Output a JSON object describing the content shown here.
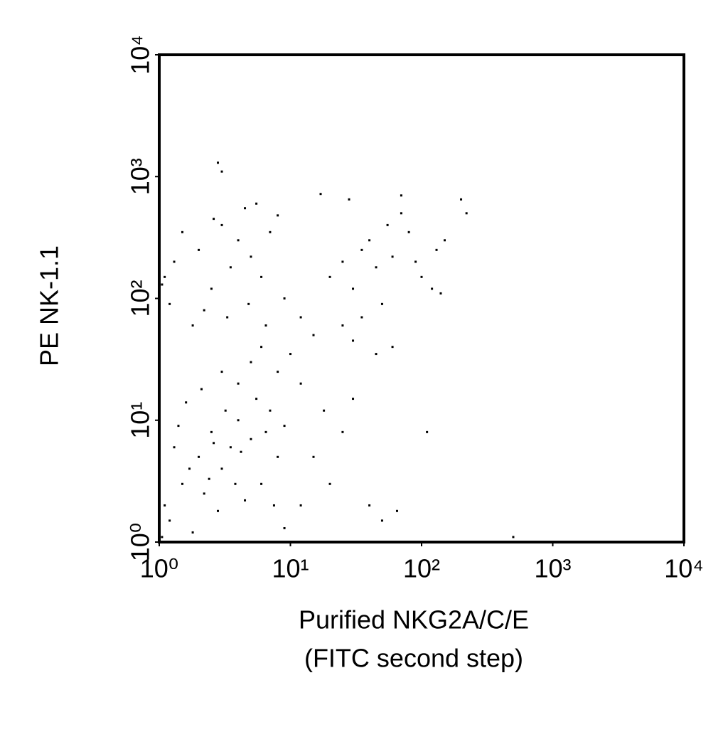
{
  "chart_data": {
    "type": "scatter",
    "x_label": "Purified NKG2A/C/E",
    "x_label_2": "(FITC second step)",
    "y_label": "PE NK-1.1",
    "xscale": "log",
    "yscale": "log",
    "xlim": [
      1,
      10000
    ],
    "ylim": [
      1,
      10000
    ],
    "xticks": [
      {
        "value": 1,
        "label": "10⁰"
      },
      {
        "value": 10,
        "label": "10¹"
      },
      {
        "value": 100,
        "label": "10²"
      },
      {
        "value": 1000,
        "label": "10³"
      },
      {
        "value": 10000,
        "label": "10⁴"
      }
    ],
    "yticks": [
      {
        "value": 1,
        "label": "10⁰"
      },
      {
        "value": 10,
        "label": "10¹"
      },
      {
        "value": 100,
        "label": "10²"
      },
      {
        "value": 1000,
        "label": "10³"
      },
      {
        "value": 10000,
        "label": "10⁴"
      }
    ],
    "color": "#000000",
    "x": [
      1.2,
      1.5,
      2,
      2.5,
      3,
      3.5,
      4,
      5,
      6,
      7,
      1.1,
      1.3,
      1.8,
      2.2,
      2.8,
      3.2,
      4.5,
      5.5,
      8,
      9,
      1.4,
      1.7,
      2.4,
      2.6,
      3.8,
      4.2,
      6.5,
      7.5,
      1.05,
      1.6,
      2.1,
      3,
      4,
      5,
      6,
      8,
      10,
      12,
      15,
      20,
      25,
      30,
      40,
      50,
      65,
      110,
      500,
      18,
      12,
      9,
      1.1,
      1.3,
      1.5,
      2,
      2.5,
      2.8,
      3,
      3,
      3.5,
      4,
      4.5,
      5,
      6,
      7,
      8,
      1.2,
      1.8,
      2.2,
      3.3,
      4.8,
      6.5,
      9,
      12,
      15,
      17,
      1.05,
      2.6,
      5.5,
      20,
      25,
      30,
      35,
      40,
      45,
      50,
      55,
      60,
      70,
      80,
      90,
      100,
      130,
      150,
      200,
      220,
      60,
      45,
      25,
      30,
      35,
      120,
      140,
      28,
      70
    ],
    "y": [
      1.5,
      3,
      5,
      8,
      4,
      6,
      10,
      7,
      3,
      12,
      2,
      6,
      1.2,
      2.5,
      1.8,
      12,
      2.2,
      15,
      5,
      9,
      9,
      4,
      3.3,
      6.5,
      3,
      5.5,
      8,
      2,
      1.1,
      14,
      18,
      25,
      20,
      30,
      40,
      25,
      35,
      20,
      5,
      3,
      8,
      15,
      2,
      1.5,
      1.8,
      8,
      1.1,
      12,
      2,
      1.3,
      150,
      200,
      350,
      250,
      120,
      1300,
      1100,
      400,
      180,
      300,
      550,
      220,
      150,
      350,
      480,
      90,
      60,
      80,
      70,
      90,
      60,
      100,
      70,
      50,
      720,
      130,
      450,
      600,
      150,
      200,
      120,
      250,
      300,
      180,
      90,
      400,
      220,
      500,
      350,
      200,
      150,
      250,
      300,
      650,
      500,
      40,
      35,
      60,
      45,
      70,
      120,
      110,
      650,
      700
    ]
  }
}
